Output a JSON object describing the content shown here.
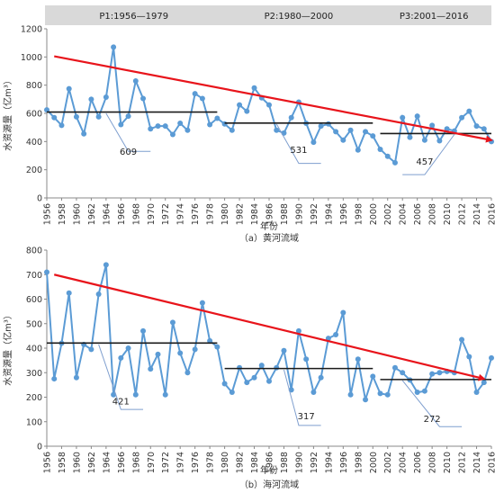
{
  "colors": {
    "series": "#5b9bd5",
    "trend": "#e8141b",
    "mean": "#1a1a1a",
    "header": "#d9d9d9",
    "callout": "#7f9fcf"
  },
  "chart_data": [
    {
      "type": "line",
      "caption": "（a）黄河流域",
      "xlabel": "年份",
      "ylabel": "水资源量（亿m³）",
      "ylim": [
        0,
        1200
      ],
      "yticks": [
        0,
        200,
        400,
        600,
        800,
        1000,
        1200
      ],
      "xlim": [
        1956,
        2016
      ],
      "xticks": [
        "1956",
        "1958",
        "1960",
        "1962",
        "1964",
        "1966",
        "1968",
        "1970",
        "1972",
        "1974",
        "1976",
        "1978",
        "1980",
        "1982",
        "1984",
        "1986",
        "1988",
        "1990",
        "1992",
        "1994",
        "1996",
        "1998",
        "2000",
        "2002",
        "2004",
        "2006",
        "2008",
        "2010",
        "2012",
        "2014",
        "2016"
      ],
      "periods": [
        "P1:1956—1979",
        "P2:1980—2000",
        "P3:2001—2016"
      ],
      "x": [
        1956,
        1957,
        1958,
        1959,
        1960,
        1961,
        1962,
        1963,
        1964,
        1965,
        1966,
        1967,
        1968,
        1969,
        1970,
        1971,
        1972,
        1973,
        1974,
        1975,
        1976,
        1977,
        1978,
        1979,
        1980,
        1981,
        1982,
        1983,
        1984,
        1985,
        1986,
        1987,
        1988,
        1989,
        1990,
        1991,
        1992,
        1993,
        1994,
        1995,
        1996,
        1997,
        1998,
        1999,
        2000,
        2001,
        2002,
        2003,
        2004,
        2005,
        2006,
        2007,
        2008,
        2009,
        2010,
        2011,
        2012,
        2013,
        2014,
        2015,
        2016
      ],
      "values": [
        625,
        570,
        515,
        775,
        575,
        455,
        700,
        575,
        715,
        1070,
        520,
        580,
        830,
        705,
        490,
        510,
        510,
        450,
        530,
        480,
        740,
        705,
        520,
        565,
        525,
        480,
        660,
        615,
        780,
        710,
        660,
        480,
        460,
        570,
        680,
        530,
        395,
        510,
        525,
        470,
        410,
        480,
        340,
        470,
        440,
        345,
        295,
        250,
        570,
        430,
        580,
        410,
        515,
        405,
        490,
        475,
        570,
        615,
        510,
        490,
        400
      ],
      "means": [
        {
          "start": 1956,
          "end": 1979,
          "value": 609,
          "label": "609",
          "label_at": [
            1967,
            305
          ]
        },
        {
          "start": 1980,
          "end": 2000,
          "value": 531,
          "label": "531",
          "label_at": [
            1990,
            320
          ]
        },
        {
          "start": 2001,
          "end": 2016,
          "value": 457,
          "label": "457",
          "label_at": [
            2007,
            235
          ]
        }
      ],
      "callouts": [
        {
          "from": [
            1964,
            600
          ],
          "to": [
            1967,
            330
          ],
          "end": [
            1970,
            330
          ]
        },
        {
          "from": [
            1987,
            525
          ],
          "to": [
            1990,
            245
          ],
          "end": [
            1993,
            245
          ]
        },
        {
          "from": [
            2011,
            450
          ],
          "to": [
            2007,
            165
          ],
          "end": [
            2004,
            165
          ]
        }
      ],
      "trend": {
        "from": [
          1957,
          1005
        ],
        "to": [
          2016,
          410
        ]
      }
    },
    {
      "type": "line",
      "caption": "（b）海河流域",
      "xlabel": "年份",
      "ylabel": "水资源量（亿m³）",
      "ylim": [
        0,
        800
      ],
      "yticks": [
        0,
        100,
        200,
        300,
        400,
        500,
        600,
        700,
        800
      ],
      "xlim": [
        1956,
        2016
      ],
      "xticks": [
        "1956",
        "1958",
        "1960",
        "1962",
        "1964",
        "1966",
        "1968",
        "1970",
        "1972",
        "1974",
        "1976",
        "1978",
        "1980",
        "1982",
        "1984",
        "1986",
        "1988",
        "1990",
        "1992",
        "1994",
        "1996",
        "1998",
        "2000",
        "2002",
        "2004",
        "2006",
        "2008",
        "2010",
        "2012",
        "2014",
        "2016"
      ],
      "x": [
        1956,
        1957,
        1958,
        1959,
        1960,
        1961,
        1962,
        1963,
        1964,
        1965,
        1966,
        1967,
        1968,
        1969,
        1970,
        1971,
        1972,
        1973,
        1974,
        1975,
        1976,
        1977,
        1978,
        1979,
        1980,
        1981,
        1982,
        1983,
        1984,
        1985,
        1986,
        1987,
        1988,
        1989,
        1990,
        1991,
        1992,
        1993,
        1994,
        1995,
        1996,
        1997,
        1998,
        1999,
        2000,
        2001,
        2002,
        2003,
        2004,
        2005,
        2006,
        2007,
        2008,
        2009,
        2010,
        2011,
        2012,
        2013,
        2014,
        2015,
        2016
      ],
      "values": [
        710,
        275,
        420,
        625,
        280,
        415,
        395,
        620,
        740,
        210,
        360,
        400,
        210,
        470,
        315,
        375,
        210,
        505,
        380,
        300,
        395,
        585,
        430,
        405,
        255,
        220,
        320,
        260,
        280,
        330,
        265,
        320,
        390,
        230,
        470,
        355,
        220,
        280,
        440,
        455,
        545,
        210,
        355,
        190,
        285,
        215,
        210,
        320,
        300,
        270,
        220,
        225,
        295,
        300,
        305,
        300,
        435,
        365,
        220,
        260,
        360
      ],
      "means": [
        {
          "start": 1956,
          "end": 1979,
          "value": 421,
          "label": "421",
          "label_at": [
            1966,
            170
          ]
        },
        {
          "start": 1980,
          "end": 2000,
          "value": 317,
          "label": "317",
          "label_at": [
            1991,
            110
          ]
        },
        {
          "start": 2001,
          "end": 2016,
          "value": 272,
          "label": "272",
          "label_at": [
            2008,
            100
          ]
        }
      ],
      "callouts": [
        {
          "from": [
            1963,
            415
          ],
          "to": [
            1966,
            150
          ],
          "end": [
            1969,
            150
          ]
        },
        {
          "from": [
            1988,
            312
          ],
          "to": [
            1990,
            85
          ],
          "end": [
            1993,
            85
          ]
        },
        {
          "from": [
            2004,
            268
          ],
          "to": [
            2009,
            80
          ],
          "end": [
            2012,
            80
          ]
        }
      ],
      "trend": {
        "from": [
          1957,
          700
        ],
        "to": [
          2015,
          275
        ]
      }
    }
  ]
}
